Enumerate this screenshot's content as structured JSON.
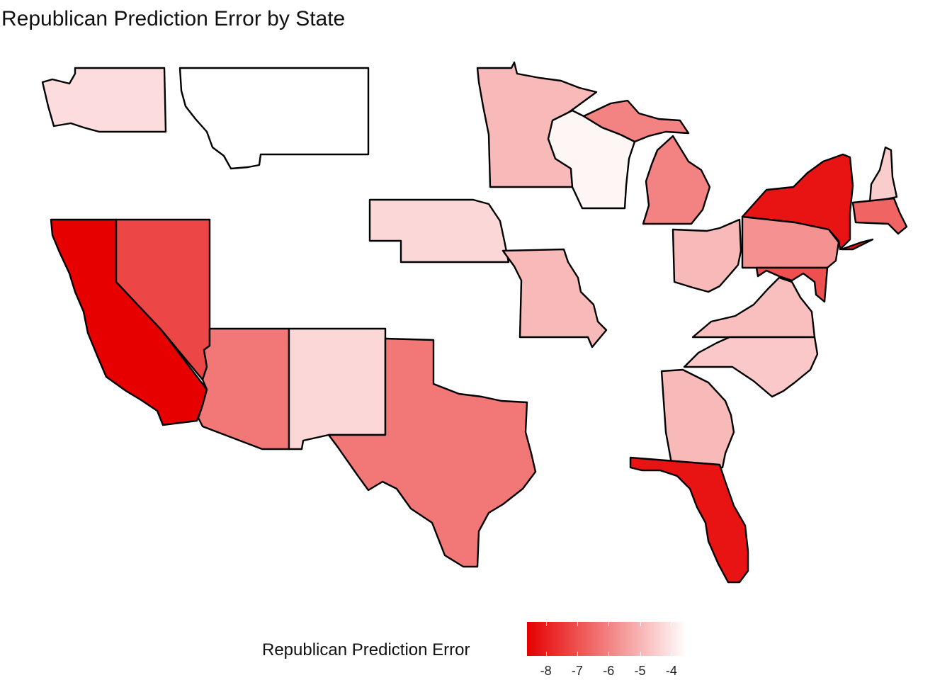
{
  "title": "Republican Prediction Error by State",
  "legend": {
    "title": "Republican Prediction Error",
    "ticks": [
      -8,
      -7,
      -6,
      -5,
      -4
    ],
    "range": [
      -8.6,
      -3.5
    ],
    "colors": {
      "low": "#e60000",
      "high": "#ffffff"
    }
  },
  "states": [
    {
      "id": "WA",
      "value": -4.2
    },
    {
      "id": "MT",
      "value": null
    },
    {
      "id": "MN",
      "value": -4.9
    },
    {
      "id": "WI",
      "value": -3.7
    },
    {
      "id": "MI",
      "value": -6.0
    },
    {
      "id": "NY",
      "value": -8.2
    },
    {
      "id": "NH",
      "value": -4.5
    },
    {
      "id": "MA",
      "value": -6.6
    },
    {
      "id": "NE",
      "value": -4.3
    },
    {
      "id": "MO",
      "value": -4.9
    },
    {
      "id": "OH",
      "value": -4.9
    },
    {
      "id": "PA",
      "value": -5.7
    },
    {
      "id": "MD",
      "value": -7.0
    },
    {
      "id": "VA",
      "value": -4.8
    },
    {
      "id": "NC",
      "value": -4.6
    },
    {
      "id": "GA",
      "value": -4.9
    },
    {
      "id": "FL",
      "value": -8.2
    },
    {
      "id": "CA",
      "value": -8.6
    },
    {
      "id": "NV",
      "value": -7.2
    },
    {
      "id": "AZ",
      "value": -6.2
    },
    {
      "id": "NM",
      "value": -4.3
    },
    {
      "id": "TX",
      "value": -6.2
    }
  ]
}
